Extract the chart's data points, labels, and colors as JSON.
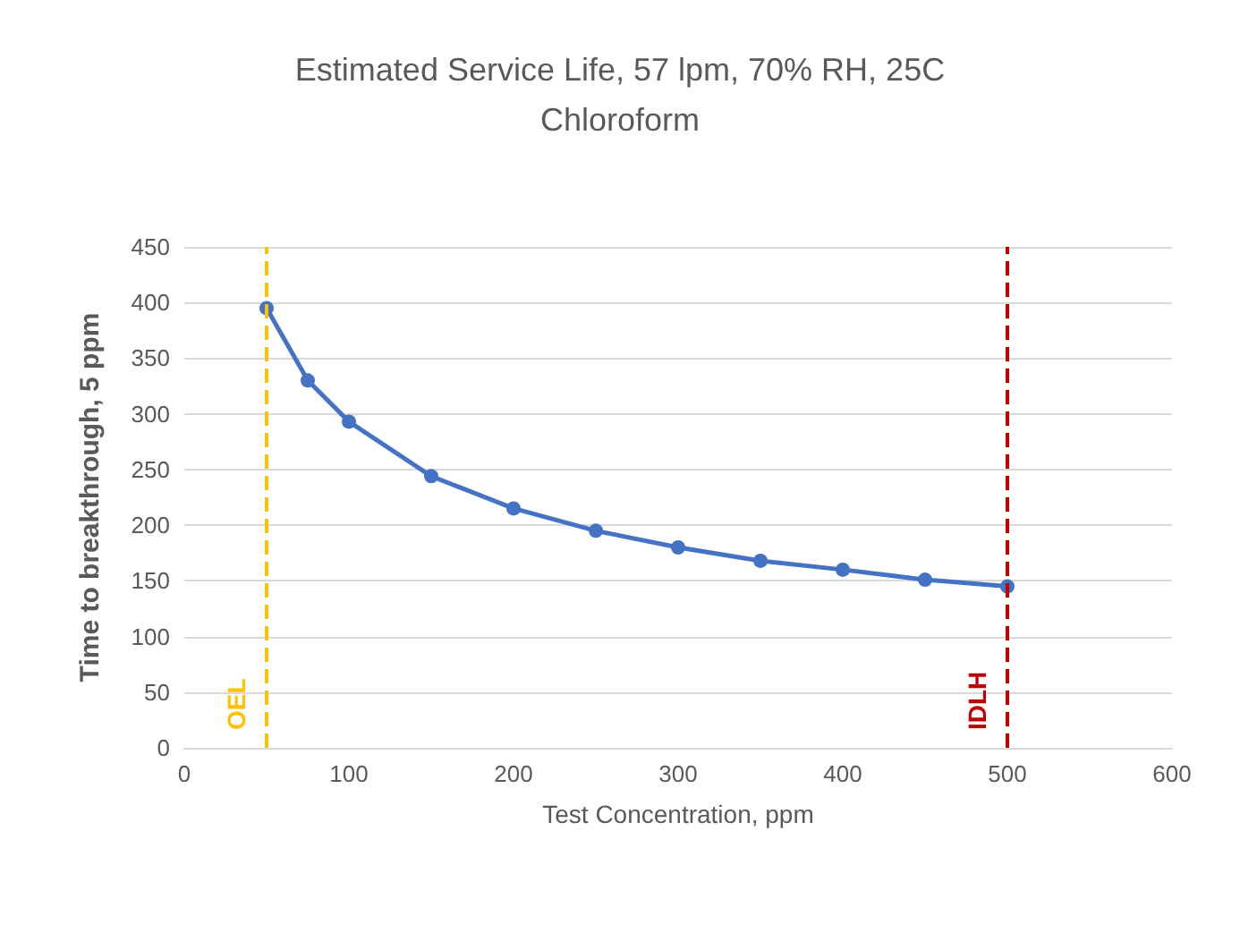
{
  "chart_data": {
    "type": "line",
    "title": "Estimated Service Life, 57 lpm, 70% RH, 25C\nChloroform",
    "xlabel": "Test Concentration, ppm",
    "ylabel": "Time to breakthrough, 5 ppm",
    "x": [
      50,
      75,
      100,
      150,
      200,
      250,
      300,
      350,
      400,
      450,
      500
    ],
    "series": [
      {
        "color": "#4472c4",
        "values": [
          395,
          330,
          293,
          244,
          215,
          195,
          180,
          168,
          160,
          151,
          145
        ]
      }
    ],
    "xlim": [
      0,
      600
    ],
    "xticks": [
      0,
      100,
      200,
      300,
      400,
      500,
      600
    ],
    "ylim": [
      0,
      450
    ],
    "yticks": [
      0,
      50,
      100,
      150,
      200,
      250,
      300,
      350,
      400,
      450
    ],
    "grid": "y",
    "marker": "circle",
    "line_style": "solid",
    "ref_lines": [
      {
        "axis": "x",
        "value": 50,
        "label": "OEL",
        "color": "#ffc000",
        "line_style": "dashed"
      },
      {
        "axis": "x",
        "value": 500,
        "label": "IDLH",
        "color": "#c00000",
        "line_style": "dashed"
      }
    ]
  }
}
